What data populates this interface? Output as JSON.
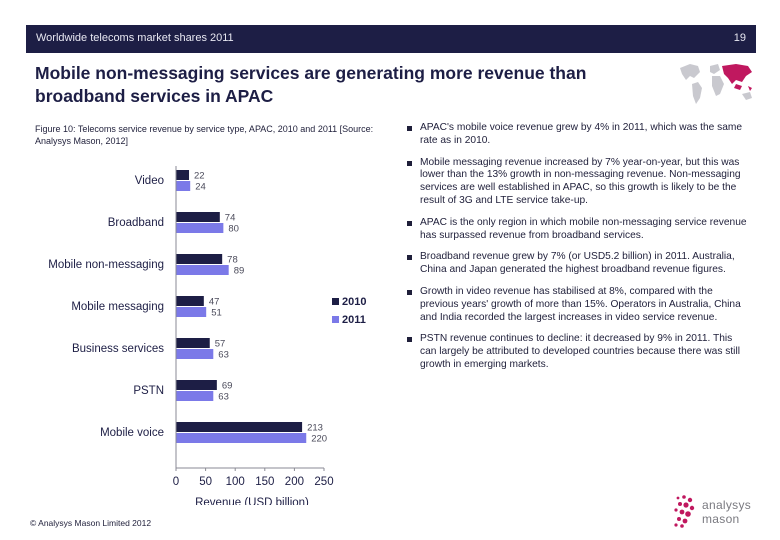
{
  "header": {
    "deck_title": "Worldwide telecoms market shares 2011",
    "page_number": "19"
  },
  "slide_title": "Mobile non-messaging services are generating more revenue than broadband services in APAC",
  "figure_caption": "Figure 10: Telecoms service revenue by service type, APAC, 2010 and 2011 [Source: Analysys Mason, 2012]",
  "chart_data": {
    "type": "bar",
    "orientation": "horizontal",
    "categories": [
      "Video",
      "Broadband",
      "Mobile non-messaging",
      "Mobile messaging",
      "Business services",
      "PSTN",
      "Mobile voice"
    ],
    "series": [
      {
        "name": "2010",
        "values": [
          22,
          74,
          78,
          47,
          57,
          69,
          213
        ],
        "color": "#1d1e45"
      },
      {
        "name": "2011",
        "values": [
          24,
          80,
          89,
          51,
          63,
          63,
          220
        ],
        "color": "#7b79e8"
      }
    ],
    "xlabel": "Revenue (USD billion)",
    "xlim": [
      0,
      250
    ],
    "xticks": [
      "0",
      "50",
      "100",
      "150",
      "200",
      "250"
    ],
    "grid": false,
    "legend_position": "right"
  },
  "bullets": [
    "APAC's mobile voice revenue grew by 4% in 2011, which was the same rate as in 2010.",
    "Mobile messaging revenue increased by 7% year-on-year, but this was lower than the 13% growth in non-messaging revenue. Non-messaging services are well established in APAC, so this growth is likely to be the result of 3G and LTE service take-up.",
    "APAC is the only region in which mobile non-messaging service revenue has surpassed revenue from broadband services.",
    "Broadband revenue grew by 7% (or USD5.2 billion) in 2011. Australia, China and Japan generated the highest broadband revenue figures.",
    "Growth in video revenue has stabilised at 8%, compared with the previous years' growth of more than 15%. Operators in Australia, China and India recorded the largest increases in video service revenue.",
    "PSTN revenue continues to decline: it decreased by 9% in 2011. This can largely be attributed to developed countries because there was still growth in emerging markets."
  ],
  "footer": "© Analysys Mason Limited 2012",
  "logo": {
    "line1": "analysys",
    "line2": "mason",
    "accent_color": "#c0185f"
  },
  "map": {
    "icon": "world-map-icon",
    "highlight_color": "#c0185f"
  }
}
